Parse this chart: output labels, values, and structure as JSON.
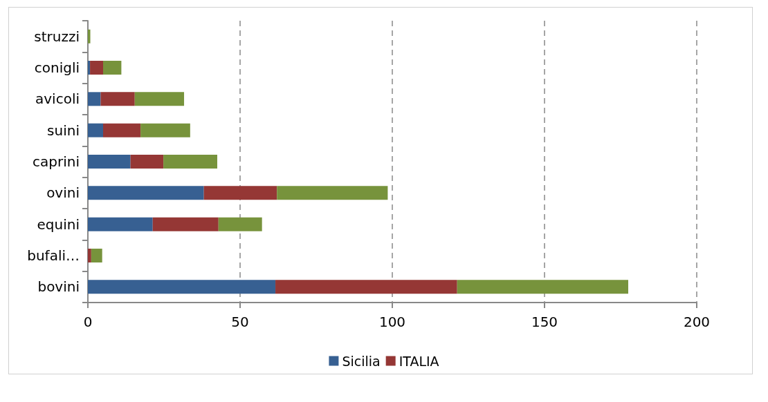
{
  "chart_data": {
    "type": "bar",
    "orientation": "horizontal",
    "stacked": true,
    "categories": [
      "struzzi",
      "conigli",
      "avicoli",
      "suini",
      "caprini",
      "ovini",
      "equini",
      "bufali…",
      "bovini"
    ],
    "series": [
      {
        "name": "Sicilia",
        "color": "#376092",
        "values": [
          0,
          0.7,
          4.2,
          5.0,
          14.0,
          38.1,
          21.3,
          0,
          61.6
        ]
      },
      {
        "name": "ITALIA",
        "color": "#953735",
        "values": [
          0,
          4.3,
          11.2,
          12.3,
          10.8,
          24.0,
          21.6,
          1.1,
          59.7
        ]
      },
      {
        "color": "#77933c",
        "values": [
          0.8,
          6.0,
          16.2,
          16.3,
          17.7,
          36.4,
          14.3,
          3.6,
          56.2
        ]
      }
    ],
    "xlim": [
      0,
      200
    ],
    "xticks": [
      0,
      50,
      100,
      150,
      200
    ],
    "grid": "x",
    "legend": "bottom"
  }
}
